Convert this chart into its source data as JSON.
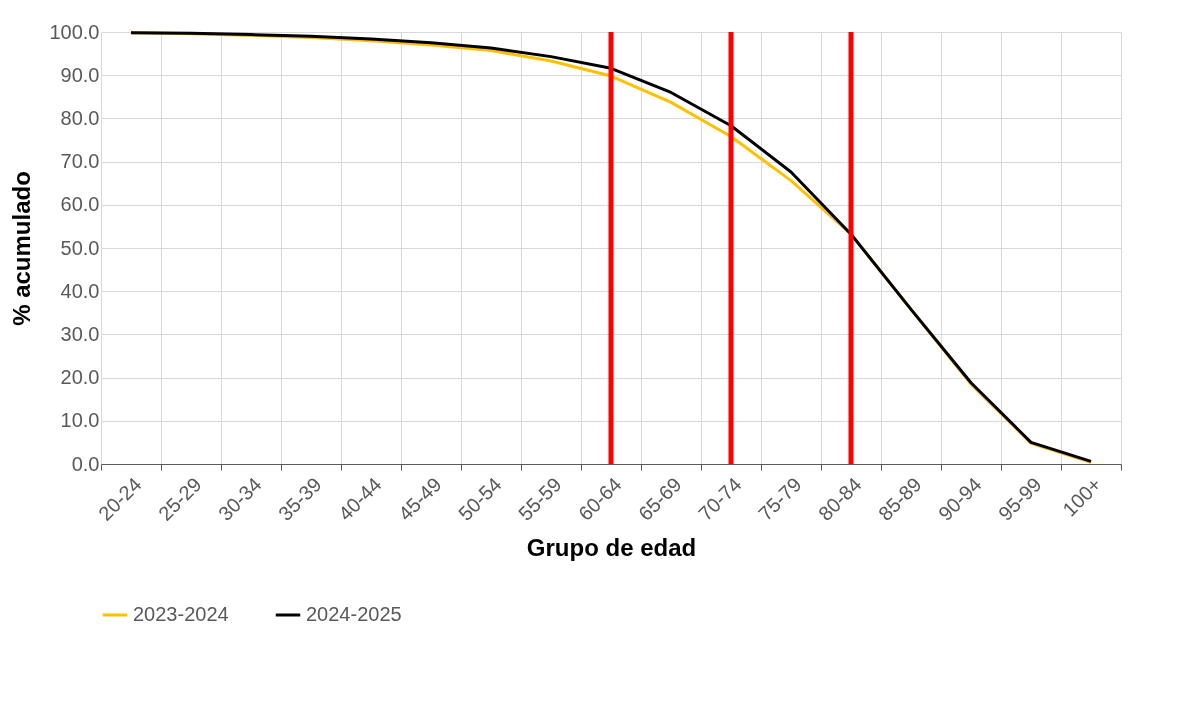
{
  "chart_data": {
    "type": "line",
    "xlabel": "Grupo de edad",
    "ylabel": "% acumulado",
    "categories": [
      "20-24",
      "25-29",
      "30-34",
      "35-39",
      "40-44",
      "45-49",
      "50-54",
      "55-59",
      "60-64",
      "65-69",
      "70-74",
      "75-79",
      "80-84",
      "85-89",
      "90-94",
      "95-99",
      "100+"
    ],
    "series": [
      {
        "name": "2023-2024",
        "color": "#ffc000",
        "values": [
          99.8,
          99.6,
          99.2,
          98.7,
          98.0,
          97.0,
          95.7,
          93.3,
          89.8,
          83.7,
          75.8,
          65.6,
          53.2,
          35.8,
          18.5,
          4.8,
          0.4
        ]
      },
      {
        "name": "2024-2025",
        "color": "#000000",
        "values": [
          99.8,
          99.7,
          99.4,
          99.0,
          98.4,
          97.5,
          96.3,
          94.3,
          91.6,
          86.0,
          78.3,
          67.6,
          53.2,
          35.8,
          18.8,
          5.0,
          0.6
        ]
      }
    ],
    "ylim": [
      0,
      100
    ],
    "yticks": [
      {
        "value": 0,
        "label": "0.0"
      },
      {
        "value": 10,
        "label": "10.0"
      },
      {
        "value": 20,
        "label": "20.0"
      },
      {
        "value": 30,
        "label": "30.0"
      },
      {
        "value": 40,
        "label": "40.0"
      },
      {
        "value": 50,
        "label": "50.0"
      },
      {
        "value": 60,
        "label": "60.0"
      },
      {
        "value": 70,
        "label": "70.0"
      },
      {
        "value": 80,
        "label": "80.0"
      },
      {
        "value": 90,
        "label": "90.0"
      },
      {
        "value": 100,
        "label": "100.0"
      }
    ],
    "ref_lines": [
      {
        "axis": "x",
        "value": "60-64",
        "color": "#ff0000"
      },
      {
        "axis": "x",
        "value": "70-74",
        "color": "#ff0000"
      },
      {
        "axis": "x",
        "value": "80-84",
        "color": "#ff0000"
      }
    ],
    "grid": true,
    "legend": "bottom",
    "line_style": "solid"
  }
}
